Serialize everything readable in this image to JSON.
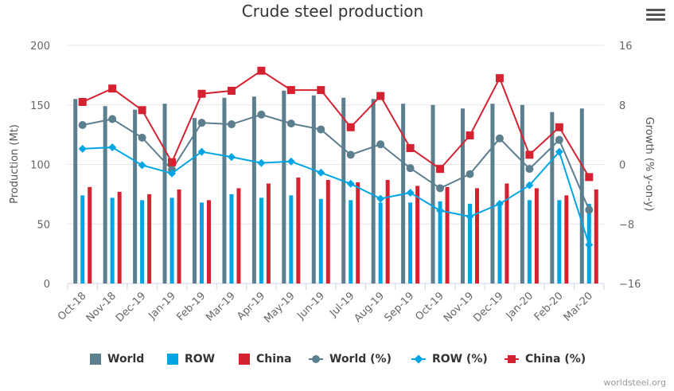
{
  "chart_data": {
    "type": "bar",
    "title": "Crude steel production",
    "ylabel": "Production (Mt)",
    "y2label": "Growth (% y-on-y)",
    "ylim": [
      0,
      200
    ],
    "y2lim": [
      -16,
      16
    ],
    "yticks": [
      "0",
      "50",
      "100",
      "150",
      "200"
    ],
    "y2ticks": [
      "−16",
      "−8",
      "0",
      "8",
      "16"
    ],
    "categories": [
      "Oct-18",
      "Nov-18",
      "Dec-19",
      "Jan-19",
      "Feb-19",
      "Mar-19",
      "Apr-19",
      "May-19",
      "Jun-19",
      "Jul-19",
      "Aug-19",
      "Sep-19",
      "Oct-19",
      "Nov-19",
      "Dec-19",
      "Jan-20",
      "Feb-20",
      "Mar-20"
    ],
    "series": [
      {
        "name": "World",
        "kind": "bar",
        "axis": "left",
        "color": "#5b7f8e",
        "values": [
          155,
          149,
          146,
          151,
          139,
          156,
          157,
          162,
          158,
          156,
          155,
          151,
          150,
          147,
          151,
          150,
          144,
          147
        ]
      },
      {
        "name": "ROW",
        "kind": "bar",
        "axis": "left",
        "color": "#00a6e3",
        "values": [
          74,
          72,
          70,
          72,
          68,
          75,
          72,
          74,
          71,
          70,
          68,
          68,
          69,
          67,
          67,
          70,
          70,
          67
        ]
      },
      {
        "name": "China",
        "kind": "bar",
        "axis": "left",
        "color": "#d52230",
        "values": [
          81,
          77,
          75,
          79,
          70,
          80,
          84,
          89,
          87,
          85,
          87,
          82,
          81,
          80,
          84,
          80,
          74,
          79
        ]
      },
      {
        "name": "World (%)",
        "kind": "line",
        "axis": "right",
        "color": "#5b7f8e",
        "marker": "circle",
        "values": [
          5.3,
          6.1,
          3.6,
          -0.7,
          5.6,
          5.4,
          6.7,
          5.5,
          4.7,
          1.3,
          2.7,
          -0.5,
          -3.2,
          -1.3,
          3.5,
          -0.6,
          3.3,
          -6.1
        ]
      },
      {
        "name": "ROW (%)",
        "kind": "line",
        "axis": "right",
        "color": "#00a6e3",
        "marker": "diamond",
        "values": [
          2.1,
          2.3,
          -0.1,
          -1.2,
          1.7,
          1.0,
          0.2,
          0.4,
          -1.1,
          -2.6,
          -4.6,
          -3.8,
          -6.2,
          -7.0,
          -5.3,
          -2.8,
          1.7,
          -10.8
        ]
      },
      {
        "name": "China (%)",
        "kind": "line",
        "axis": "right",
        "color": "#d52230",
        "marker": "square",
        "values": [
          8.4,
          10.2,
          7.3,
          0.3,
          9.5,
          9.9,
          12.6,
          10.0,
          10.0,
          5.0,
          9.2,
          2.2,
          -0.6,
          3.9,
          11.6,
          1.3,
          5.0,
          -1.7
        ]
      }
    ],
    "grid": "horizontal",
    "legend": "bottom"
  },
  "credit": "worldsteel.org",
  "menu_icon": "hamburger-menu-icon"
}
